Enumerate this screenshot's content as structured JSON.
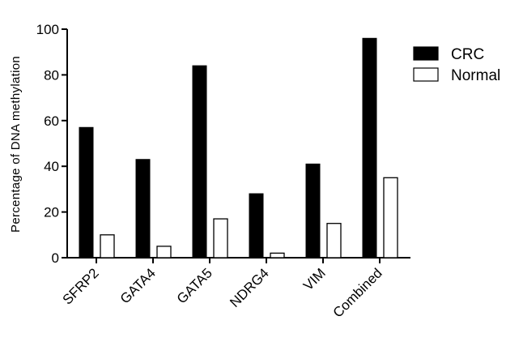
{
  "chart_data": {
    "type": "bar",
    "title": "",
    "xlabel": "",
    "ylabel": "Percentage of DNA methylation",
    "ylim": [
      0,
      100
    ],
    "yticks": [
      0,
      20,
      40,
      60,
      80,
      100
    ],
    "grid": false,
    "legend_position": "top-right",
    "categories": [
      "SFRP2",
      "GATA4",
      "GATA5",
      "NDRG4",
      "VIM",
      "Combined"
    ],
    "series": [
      {
        "name": "CRC",
        "fill": "#000000",
        "stroke": "#000000",
        "values": [
          57,
          43,
          84,
          28,
          41,
          96
        ]
      },
      {
        "name": "Normal",
        "fill": "#ffffff",
        "stroke": "#000000",
        "values": [
          10,
          5,
          17,
          2,
          15,
          35
        ]
      }
    ]
  }
}
